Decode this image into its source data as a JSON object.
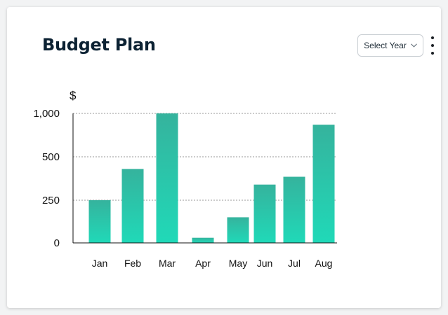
{
  "card": {
    "title": "Budget Plan",
    "select_year_label": "Select Year",
    "more_icon": "vertical-ellipsis-icon",
    "chevron_icon": "chevron-down-icon"
  },
  "colors": {
    "bar_top": "#35b39d",
    "bar_bottom": "#20d9b8",
    "title": "#0c2233"
  },
  "chart_data": {
    "type": "bar",
    "title": "",
    "xlabel": "",
    "ylabel": "$",
    "categories": [
      "Jan",
      "Feb",
      "Mar",
      "Apr",
      "May",
      "Jun",
      "Jul",
      "Aug"
    ],
    "values": [
      250,
      430,
      1000,
      30,
      150,
      340,
      385,
      870
    ],
    "y_tick_labels": [
      "0",
      "250",
      "500",
      "1,000"
    ],
    "ylim": [
      0,
      1000
    ],
    "grid": "horizontal-dotted",
    "legend": "none"
  }
}
